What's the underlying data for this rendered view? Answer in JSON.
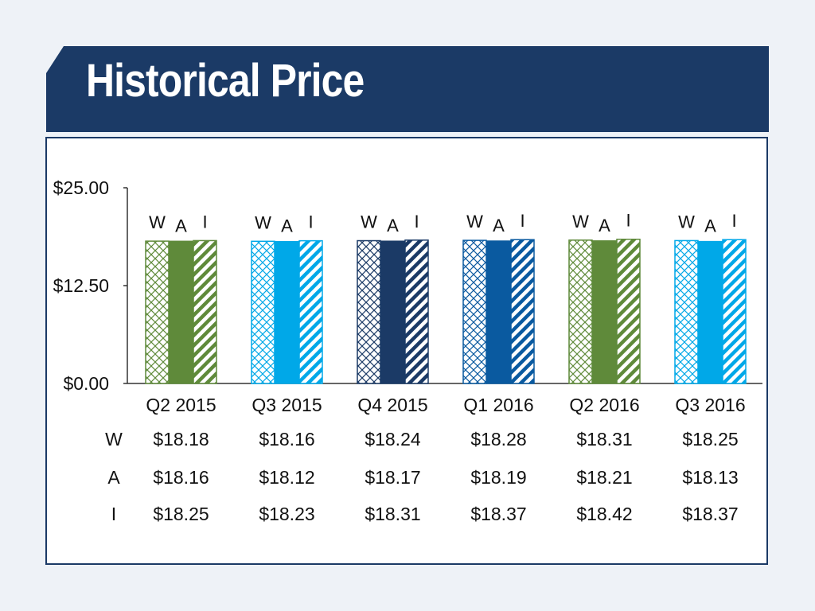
{
  "header": {
    "title": "Historical Price"
  },
  "chart_data": {
    "type": "bar",
    "title": "Historical Price",
    "categories": [
      "Q2 2015",
      "Q3 2015",
      "Q4 2015",
      "Q1 2016",
      "Q2 2016",
      "Q3 2016"
    ],
    "series": [
      {
        "name": "W",
        "values": [
          18.18,
          18.16,
          18.24,
          18.28,
          18.31,
          18.25
        ]
      },
      {
        "name": "A",
        "values": [
          18.16,
          18.12,
          18.17,
          18.19,
          18.21,
          18.13
        ]
      },
      {
        "name": "I",
        "values": [
          18.25,
          18.23,
          18.31,
          18.37,
          18.42,
          18.37
        ]
      }
    ],
    "ylim": [
      0,
      25
    ],
    "yticks": [
      "$0.00",
      "$12.50",
      "$25.00"
    ],
    "ytick_values": [
      0,
      12.5,
      25
    ],
    "grid": false,
    "legend": "letters above each bar",
    "category_colors": [
      "#5f8a3a",
      "#00a8e8",
      "#1b3a66",
      "#0a5aa0",
      "#5f8a3a",
      "#00a8e8"
    ],
    "series_fill_styles": [
      "crosshatch",
      "solid",
      "diagonal-stripes"
    ],
    "table": {
      "row_labels": [
        "W",
        "A",
        "I"
      ],
      "rows": [
        [
          "$18.18",
          "$18.16",
          "$18.24",
          "$18.28",
          "$18.31",
          "$18.25"
        ],
        [
          "$18.16",
          "$18.12",
          "$18.17",
          "$18.19",
          "$18.21",
          "$18.13"
        ],
        [
          "$18.25",
          "$18.23",
          "$18.31",
          "$18.37",
          "$18.42",
          "$18.37"
        ]
      ]
    }
  }
}
